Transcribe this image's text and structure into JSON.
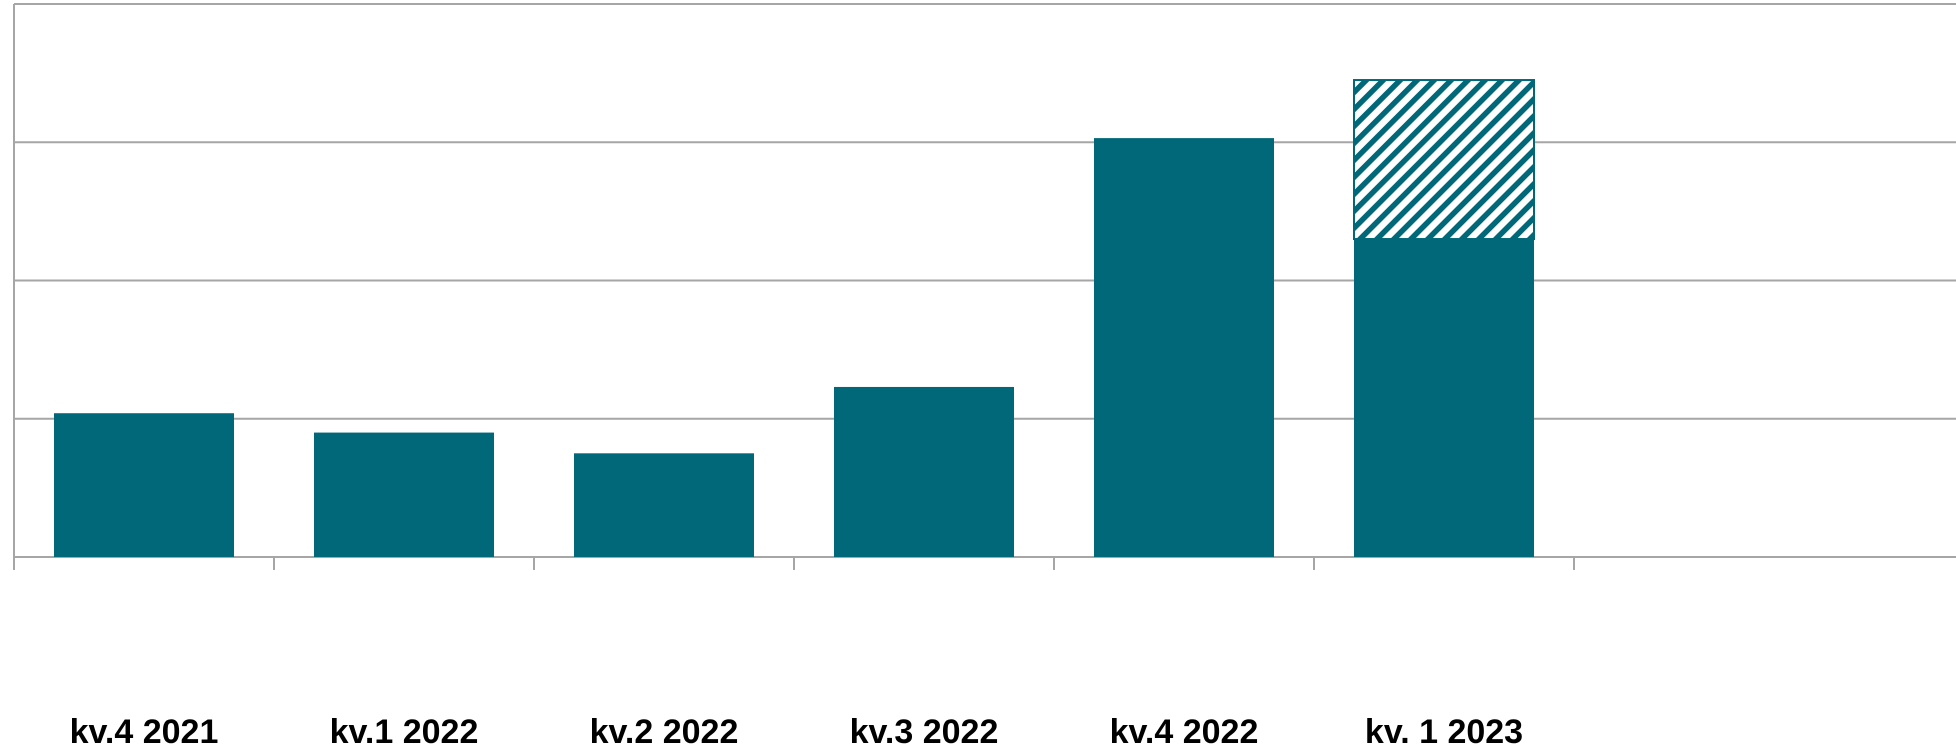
{
  "chart_data": {
    "type": "bar",
    "stacked": true,
    "categories": [
      "kv.4 2021",
      "kv.1 2022",
      "kv.2 2022",
      "kv.3 2022",
      "kv.4 2022",
      "kv. 1 2023"
    ],
    "series": [
      {
        "pattern": "solid",
        "color": "#006878",
        "values": [
          1.04,
          0.9,
          0.75,
          1.23,
          3.03,
          2.3
        ]
      },
      {
        "pattern": "diagonal-hatch",
        "color": "#006878",
        "values": [
          0,
          0,
          0,
          0,
          0,
          1.15
        ]
      }
    ],
    "title": "",
    "xlabel": "",
    "ylabel": "",
    "ylim": [
      0,
      4
    ],
    "grid": true,
    "y_tick_labels_visible": false,
    "legend": "none"
  }
}
